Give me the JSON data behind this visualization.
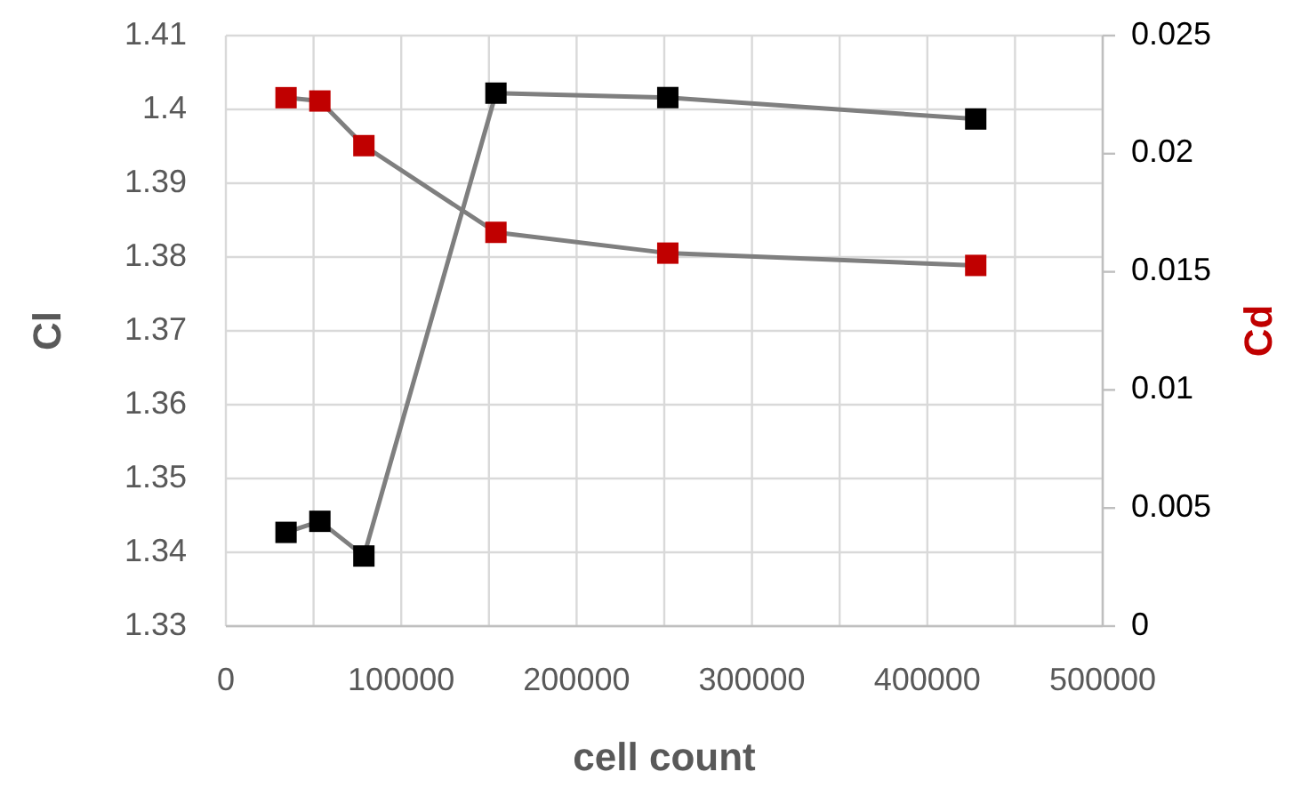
{
  "chart_data": {
    "type": "line",
    "xlabel": "cell count",
    "ylabel": "Cl",
    "y2label": "Cd",
    "x": [
      34300,
      53600,
      78700,
      154000,
      252000,
      427600
    ],
    "series": [
      {
        "color": "#000000",
        "values": [
          1.3427,
          1.3442,
          1.3395,
          1.4022,
          1.4016,
          1.3987
        ]
      },
      {
        "color": "#c00000",
        "axis": "y2",
        "values": [
          0.02237,
          0.02223,
          0.02034,
          0.01667,
          0.01579,
          0.01527
        ]
      }
    ],
    "xlim": [
      0,
      500000
    ],
    "xticks": [
      0,
      {
        "value": 50000,
        "label": null
      },
      100000,
      {
        "value": 150000,
        "label": null
      },
      200000,
      {
        "value": 250000,
        "label": null
      },
      300000,
      {
        "value": 350000,
        "label": null
      },
      400000,
      {
        "value": 450000,
        "label": null
      },
      500000
    ],
    "ylim": [
      1.33,
      1.41
    ],
    "yticks": [
      1.33,
      1.34,
      1.35,
      1.36,
      1.37,
      1.38,
      1.39,
      1.4,
      1.41
    ],
    "y2lim": [
      0,
      0.025
    ],
    "y2ticks": [
      0,
      0.005,
      0.01,
      0.015,
      0.02,
      0.025
    ],
    "grid": true,
    "marker": "square",
    "line_style": "solid"
  }
}
